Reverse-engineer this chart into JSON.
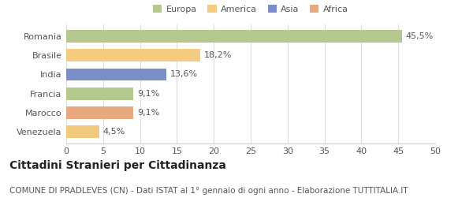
{
  "categories": [
    "Romania",
    "Brasile",
    "India",
    "Francia",
    "Marocco",
    "Venezuela"
  ],
  "values": [
    45.5,
    18.2,
    13.6,
    9.1,
    9.1,
    4.5
  ],
  "labels": [
    "45,5%",
    "18,2%",
    "13,6%",
    "9,1%",
    "9,1%",
    "4,5%"
  ],
  "colors": [
    "#b5c98e",
    "#f5cc7f",
    "#7b8ec8",
    "#b5c98e",
    "#e8a97e",
    "#f0c97f"
  ],
  "legend": [
    {
      "label": "Europa",
      "color": "#b5c98e"
    },
    {
      "label": "America",
      "color": "#f5cc7f"
    },
    {
      "label": "Asia",
      "color": "#7b8ec8"
    },
    {
      "label": "Africa",
      "color": "#e8a97e"
    }
  ],
  "xlim": [
    0,
    50
  ],
  "xticks": [
    0,
    5,
    10,
    15,
    20,
    25,
    30,
    35,
    40,
    45,
    50
  ],
  "title": "Cittadini Stranieri per Cittadinanza",
  "subtitle": "COMUNE DI PRADLEVES (CN) - Dati ISTAT al 1° gennaio di ogni anno - Elaborazione TUTTITALIA.IT",
  "background_color": "#ffffff",
  "bar_height": 0.65,
  "title_fontsize": 10,
  "subtitle_fontsize": 7.5,
  "label_fontsize": 8,
  "tick_fontsize": 8,
  "legend_fontsize": 8
}
